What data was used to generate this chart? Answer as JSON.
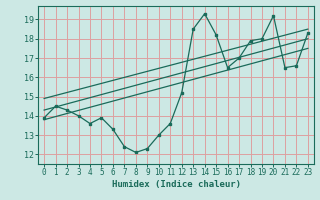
{
  "title": "",
  "xlabel": "Humidex (Indice chaleur)",
  "ylabel": "",
  "xlim": [
    -0.5,
    23.5
  ],
  "ylim": [
    11.5,
    19.7
  ],
  "yticks": [
    12,
    13,
    14,
    15,
    16,
    17,
    18,
    19
  ],
  "xticks": [
    0,
    1,
    2,
    3,
    4,
    5,
    6,
    7,
    8,
    9,
    10,
    11,
    12,
    13,
    14,
    15,
    16,
    17,
    18,
    19,
    20,
    21,
    22,
    23
  ],
  "bg_color": "#cce8e4",
  "grid_color": "#dda0a0",
  "line_color": "#1a6b5a",
  "data_x": [
    0,
    1,
    2,
    3,
    4,
    5,
    6,
    7,
    8,
    9,
    10,
    11,
    12,
    13,
    14,
    15,
    16,
    17,
    18,
    19,
    20,
    21,
    22,
    23
  ],
  "data_y": [
    13.9,
    14.5,
    14.3,
    14.0,
    13.6,
    13.9,
    13.3,
    12.4,
    12.1,
    12.3,
    13.0,
    13.6,
    15.2,
    18.5,
    19.3,
    18.2,
    16.5,
    17.0,
    17.9,
    18.0,
    19.2,
    16.5,
    16.6,
    18.3
  ],
  "line1_x": [
    0,
    23
  ],
  "line1_y": [
    13.8,
    17.5
  ],
  "line2_x": [
    0,
    23
  ],
  "line2_y": [
    14.3,
    18.0
  ],
  "line3_x": [
    0,
    23
  ],
  "line3_y": [
    14.9,
    18.5
  ]
}
